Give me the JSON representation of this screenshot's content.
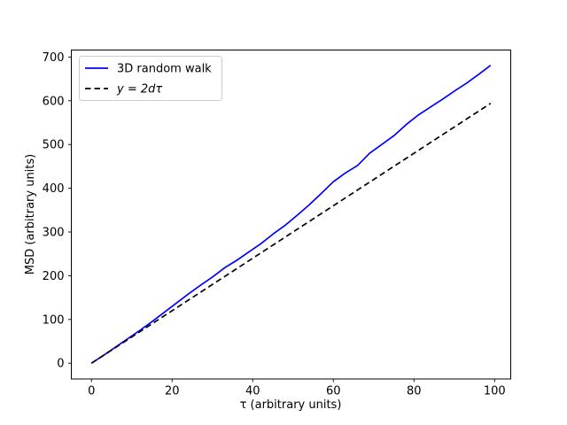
{
  "chart_data": {
    "type": "line",
    "title": "",
    "xlabel": "τ (arbitrary units)",
    "ylabel": "MSD (arbitrary units)",
    "xlim": [
      -5,
      104
    ],
    "ylim": [
      -36,
      716
    ],
    "xticks": [
      0,
      20,
      40,
      60,
      80,
      100
    ],
    "yticks": [
      0,
      100,
      200,
      300,
      400,
      500,
      600,
      700
    ],
    "grid": false,
    "legend_position": "upper left",
    "axes_edge_color": "#000000",
    "legend_border_color": "#cccccc",
    "series": [
      {
        "name": "3D random walk",
        "color": "#0000ff",
        "dash": "solid",
        "italic": false,
        "x": [
          0,
          3,
          6,
          9,
          12,
          15,
          18,
          21,
          24,
          27,
          30,
          33,
          36,
          39,
          42,
          45,
          48,
          51,
          54,
          57,
          60,
          63,
          66,
          69,
          72,
          75,
          78,
          81,
          84,
          87,
          90,
          93,
          96,
          99
        ],
        "y": [
          0,
          18,
          37,
          56,
          75,
          95,
          116,
          137,
          158,
          178,
          197,
          218,
          235,
          254,
          273,
          295,
          315,
          338,
          362,
          388,
          415,
          435,
          452,
          480,
          500,
          520,
          545,
          567,
          585,
          603,
          622,
          640,
          660,
          681
        ]
      },
      {
        "name": "y = 2dτ",
        "color": "#000000",
        "dash": "dashed",
        "italic": true,
        "x": [
          0,
          99
        ],
        "y": [
          0,
          594
        ]
      }
    ]
  }
}
